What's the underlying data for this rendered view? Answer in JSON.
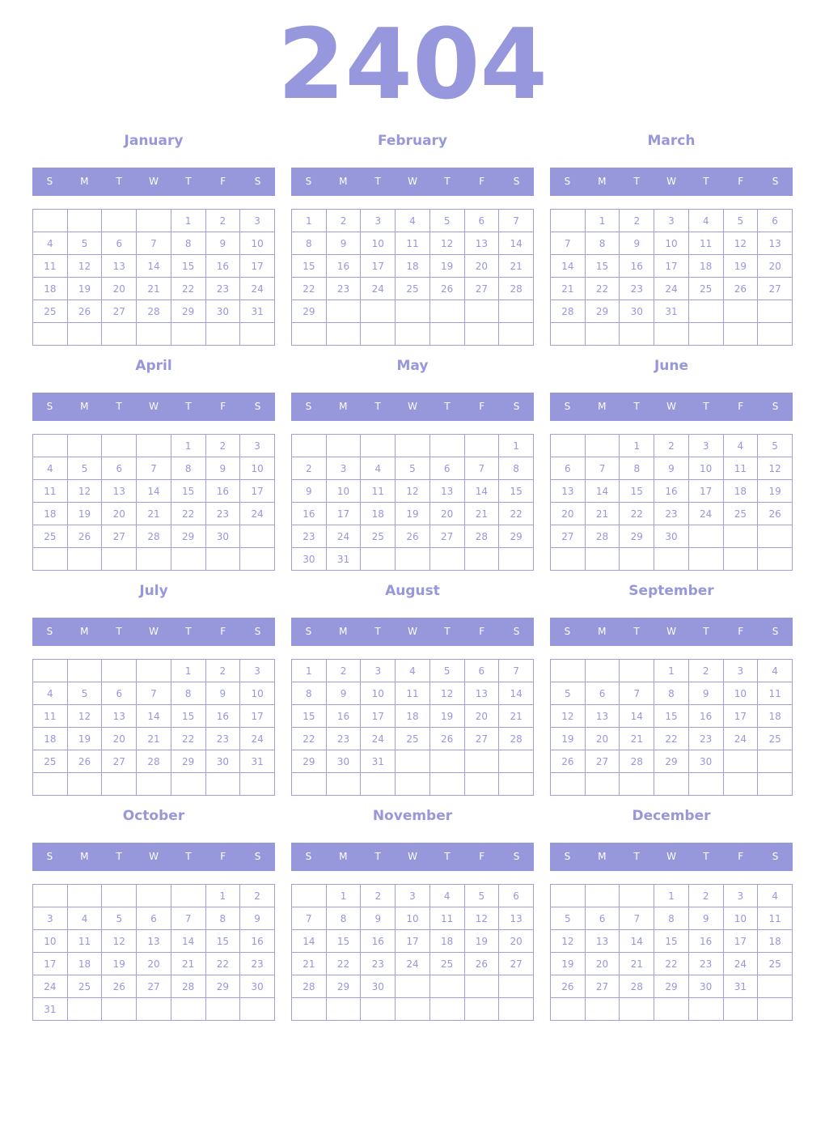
{
  "year": "2404",
  "accent_color": "#9797db",
  "weekdays": [
    "S",
    "M",
    "T",
    "W",
    "T",
    "F",
    "S"
  ],
  "months": [
    {
      "name": "January",
      "weeks": [
        [
          "",
          "",
          "",
          "",
          "1",
          "2",
          "3"
        ],
        [
          "4",
          "5",
          "6",
          "7",
          "8",
          "9",
          "10"
        ],
        [
          "11",
          "12",
          "13",
          "14",
          "15",
          "16",
          "17"
        ],
        [
          "18",
          "19",
          "20",
          "21",
          "22",
          "23",
          "24"
        ],
        [
          "25",
          "26",
          "27",
          "28",
          "29",
          "30",
          "31"
        ],
        [
          "",
          "",
          "",
          "",
          "",
          "",
          ""
        ]
      ]
    },
    {
      "name": "February",
      "weeks": [
        [
          "1",
          "2",
          "3",
          "4",
          "5",
          "6",
          "7"
        ],
        [
          "8",
          "9",
          "10",
          "11",
          "12",
          "13",
          "14"
        ],
        [
          "15",
          "16",
          "17",
          "18",
          "19",
          "20",
          "21"
        ],
        [
          "22",
          "23",
          "24",
          "25",
          "26",
          "27",
          "28"
        ],
        [
          "29",
          "",
          "",
          "",
          "",
          "",
          ""
        ],
        [
          "",
          "",
          "",
          "",
          "",
          "",
          ""
        ]
      ]
    },
    {
      "name": "March",
      "weeks": [
        [
          "",
          "1",
          "2",
          "3",
          "4",
          "5",
          "6"
        ],
        [
          "7",
          "8",
          "9",
          "10",
          "11",
          "12",
          "13"
        ],
        [
          "14",
          "15",
          "16",
          "17",
          "18",
          "19",
          "20"
        ],
        [
          "21",
          "22",
          "23",
          "24",
          "25",
          "26",
          "27"
        ],
        [
          "28",
          "29",
          "30",
          "31",
          "",
          "",
          ""
        ],
        [
          "",
          "",
          "",
          "",
          "",
          "",
          ""
        ]
      ]
    },
    {
      "name": "April",
      "weeks": [
        [
          "",
          "",
          "",
          "",
          "1",
          "2",
          "3"
        ],
        [
          "4",
          "5",
          "6",
          "7",
          "8",
          "9",
          "10"
        ],
        [
          "11",
          "12",
          "13",
          "14",
          "15",
          "16",
          "17"
        ],
        [
          "18",
          "19",
          "20",
          "21",
          "22",
          "23",
          "24"
        ],
        [
          "25",
          "26",
          "27",
          "28",
          "29",
          "30",
          ""
        ],
        [
          "",
          "",
          "",
          "",
          "",
          "",
          ""
        ]
      ]
    },
    {
      "name": "May",
      "weeks": [
        [
          "",
          "",
          "",
          "",
          "",
          "",
          "1"
        ],
        [
          "2",
          "3",
          "4",
          "5",
          "6",
          "7",
          "8"
        ],
        [
          "9",
          "10",
          "11",
          "12",
          "13",
          "14",
          "15"
        ],
        [
          "16",
          "17",
          "18",
          "19",
          "20",
          "21",
          "22"
        ],
        [
          "23",
          "24",
          "25",
          "26",
          "27",
          "28",
          "29"
        ],
        [
          "30",
          "31",
          "",
          "",
          "",
          "",
          ""
        ]
      ]
    },
    {
      "name": "June",
      "weeks": [
        [
          "",
          "",
          "1",
          "2",
          "3",
          "4",
          "5"
        ],
        [
          "6",
          "7",
          "8",
          "9",
          "10",
          "11",
          "12"
        ],
        [
          "13",
          "14",
          "15",
          "16",
          "17",
          "18",
          "19"
        ],
        [
          "20",
          "21",
          "22",
          "23",
          "24",
          "25",
          "26"
        ],
        [
          "27",
          "28",
          "29",
          "30",
          "",
          "",
          ""
        ],
        [
          "",
          "",
          "",
          "",
          "",
          "",
          ""
        ]
      ]
    },
    {
      "name": "July",
      "weeks": [
        [
          "",
          "",
          "",
          "",
          "1",
          "2",
          "3"
        ],
        [
          "4",
          "5",
          "6",
          "7",
          "8",
          "9",
          "10"
        ],
        [
          "11",
          "12",
          "13",
          "14",
          "15",
          "16",
          "17"
        ],
        [
          "18",
          "19",
          "20",
          "21",
          "22",
          "23",
          "24"
        ],
        [
          "25",
          "26",
          "27",
          "28",
          "29",
          "30",
          "31"
        ],
        [
          "",
          "",
          "",
          "",
          "",
          "",
          ""
        ]
      ]
    },
    {
      "name": "August",
      "weeks": [
        [
          "1",
          "2",
          "3",
          "4",
          "5",
          "6",
          "7"
        ],
        [
          "8",
          "9",
          "10",
          "11",
          "12",
          "13",
          "14"
        ],
        [
          "15",
          "16",
          "17",
          "18",
          "19",
          "20",
          "21"
        ],
        [
          "22",
          "23",
          "24",
          "25",
          "26",
          "27",
          "28"
        ],
        [
          "29",
          "30",
          "31",
          "",
          "",
          "",
          ""
        ],
        [
          "",
          "",
          "",
          "",
          "",
          "",
          ""
        ]
      ]
    },
    {
      "name": "September",
      "weeks": [
        [
          "",
          "",
          "",
          "1",
          "2",
          "3",
          "4"
        ],
        [
          "5",
          "6",
          "7",
          "8",
          "9",
          "10",
          "11"
        ],
        [
          "12",
          "13",
          "14",
          "15",
          "16",
          "17",
          "18"
        ],
        [
          "19",
          "20",
          "21",
          "22",
          "23",
          "24",
          "25"
        ],
        [
          "26",
          "27",
          "28",
          "29",
          "30",
          "",
          ""
        ],
        [
          "",
          "",
          "",
          "",
          "",
          "",
          ""
        ]
      ]
    },
    {
      "name": "October",
      "weeks": [
        [
          "",
          "",
          "",
          "",
          "",
          "1",
          "2"
        ],
        [
          "3",
          "4",
          "5",
          "6",
          "7",
          "8",
          "9"
        ],
        [
          "10",
          "11",
          "12",
          "13",
          "14",
          "15",
          "16"
        ],
        [
          "17",
          "18",
          "19",
          "20",
          "21",
          "22",
          "23"
        ],
        [
          "24",
          "25",
          "26",
          "27",
          "28",
          "29",
          "30"
        ],
        [
          "31",
          "",
          "",
          "",
          "",
          "",
          ""
        ]
      ]
    },
    {
      "name": "November",
      "weeks": [
        [
          "",
          "1",
          "2",
          "3",
          "4",
          "5",
          "6"
        ],
        [
          "7",
          "8",
          "9",
          "10",
          "11",
          "12",
          "13"
        ],
        [
          "14",
          "15",
          "16",
          "17",
          "18",
          "19",
          "20"
        ],
        [
          "21",
          "22",
          "23",
          "24",
          "25",
          "26",
          "27"
        ],
        [
          "28",
          "29",
          "30",
          "",
          "",
          "",
          ""
        ],
        [
          "",
          "",
          "",
          "",
          "",
          "",
          ""
        ]
      ]
    },
    {
      "name": "December",
      "weeks": [
        [
          "",
          "",
          "",
          "1",
          "2",
          "3",
          "4"
        ],
        [
          "5",
          "6",
          "7",
          "8",
          "9",
          "10",
          "11"
        ],
        [
          "12",
          "13",
          "14",
          "15",
          "16",
          "17",
          "18"
        ],
        [
          "19",
          "20",
          "21",
          "22",
          "23",
          "24",
          "25"
        ],
        [
          "26",
          "27",
          "28",
          "29",
          "30",
          "31",
          ""
        ],
        [
          "",
          "",
          "",
          "",
          "",
          "",
          ""
        ]
      ]
    }
  ]
}
